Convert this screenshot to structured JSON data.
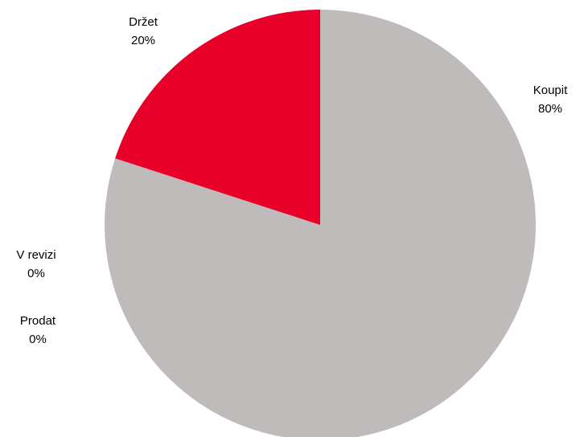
{
  "chart_data": {
    "type": "pie",
    "title": "",
    "slices": [
      {
        "label": "Koupit",
        "value": 80,
        "value_label": "80%",
        "color": "#bfbbbb"
      },
      {
        "label": "Držet",
        "value": 20,
        "value_label": "20%",
        "color": "#e8002a"
      },
      {
        "label": "V revizi",
        "value": 0,
        "value_label": "0%",
        "color": "#bfbbbb"
      },
      {
        "label": "Prodat",
        "value": 0,
        "value_label": "0%",
        "color": "#bfbbbb"
      }
    ],
    "legend": "none"
  }
}
